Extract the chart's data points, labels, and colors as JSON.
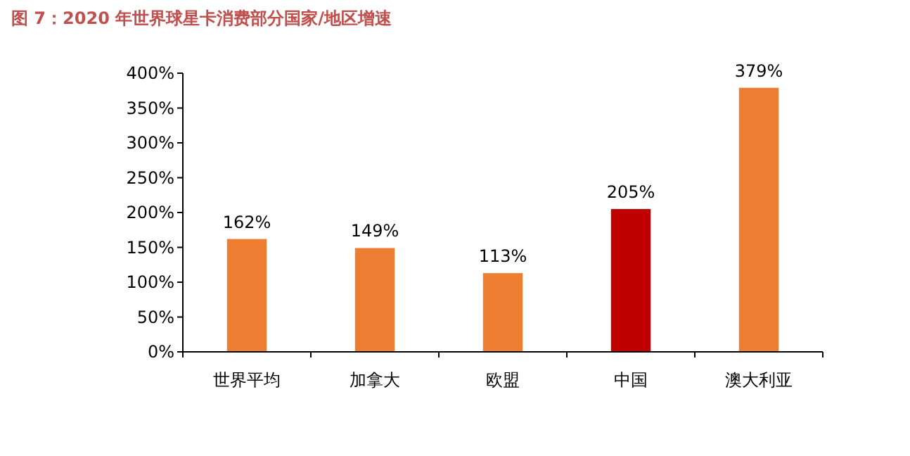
{
  "chart_data": {
    "type": "bar",
    "title": "图 7：2020 年世界球星卡消费部分国家/地区增速",
    "categories": [
      "世界平均",
      "加拿大",
      "欧盟",
      "中国",
      "澳大利亚"
    ],
    "values": [
      162,
      149,
      113,
      205,
      379
    ],
    "colors": [
      "#ed7d31",
      "#ed7d31",
      "#ed7d31",
      "#c00000",
      "#ed7d31"
    ],
    "value_labels": [
      "162%",
      "149%",
      "113%",
      "205%",
      "379%"
    ],
    "ylim": [
      0,
      400
    ],
    "yticks": [
      {
        "value": 0,
        "label": "0%"
      },
      {
        "value": 50,
        "label": "50%"
      },
      {
        "value": 100,
        "label": "100%"
      },
      {
        "value": 150,
        "label": "150%"
      },
      {
        "value": 200,
        "label": "200%"
      },
      {
        "value": 250,
        "label": "250%"
      },
      {
        "value": 300,
        "label": "300%"
      },
      {
        "value": 350,
        "label": "350%"
      },
      {
        "value": 400,
        "label": "400%"
      }
    ],
    "grid": false
  }
}
